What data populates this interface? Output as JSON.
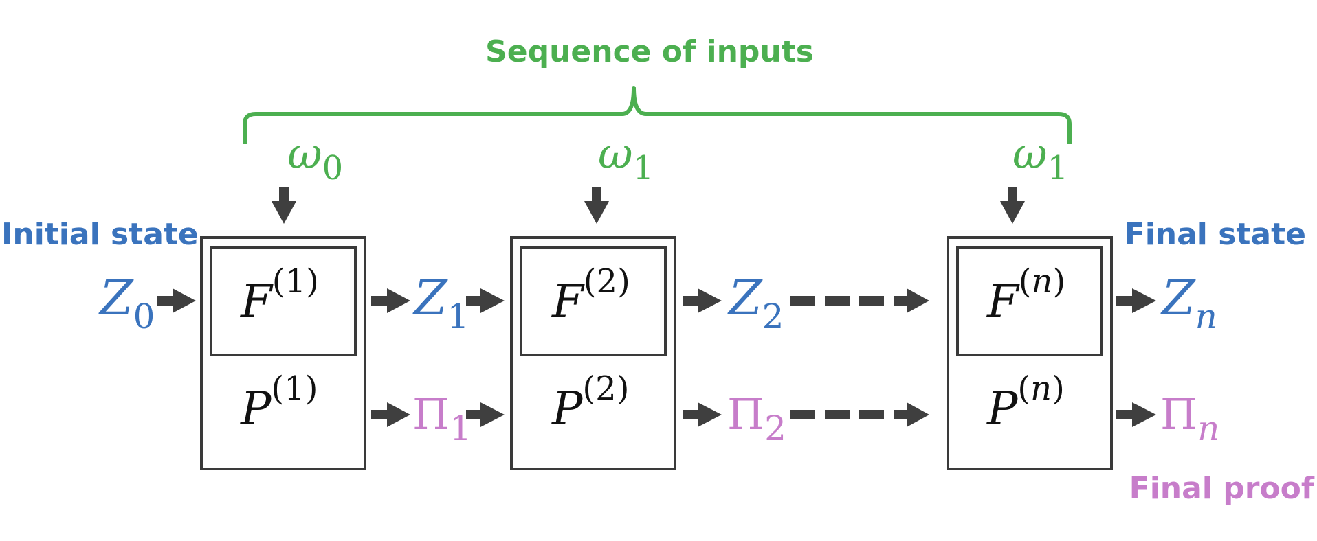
{
  "title": "Sequence of  inputs",
  "labels": {
    "initial_state": "Initial state",
    "final_state": "Final state",
    "final_proof": "Final proof"
  },
  "inputs": [
    {
      "symbol": "ω",
      "sub": "0"
    },
    {
      "symbol": "ω",
      "sub": "1"
    },
    {
      "symbol": "ω",
      "sub": "1"
    }
  ],
  "steps": [
    {
      "f": "F",
      "p": "P",
      "index": "1"
    },
    {
      "f": "F",
      "p": "P",
      "index": "2"
    },
    {
      "f": "F",
      "p": "P",
      "index": "n"
    }
  ],
  "states": [
    {
      "symbol": "Z",
      "sub": "0"
    },
    {
      "symbol": "Z",
      "sub": "1"
    },
    {
      "symbol": "Z",
      "sub": "2"
    },
    {
      "symbol": "Z",
      "sub": "n"
    }
  ],
  "proofs": [
    {
      "symbol": "Π",
      "sub": "1"
    },
    {
      "symbol": "Π",
      "sub": "2"
    },
    {
      "symbol": "Π",
      "sub": "n"
    }
  ],
  "paren_open": "(",
  "paren_close": ")",
  "colors": {
    "input": "#4CAF50",
    "state": "#3A73BD",
    "proof": "#C77DCA",
    "line": "#3a3a3a"
  }
}
